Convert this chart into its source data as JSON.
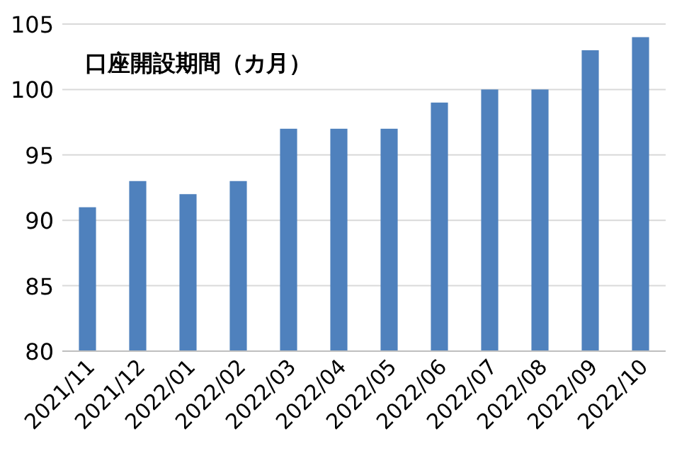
{
  "chart_data": {
    "type": "bar",
    "title": "口座開設期間（カ月）",
    "categories": [
      "2021/11",
      "2021/12",
      "2022/01",
      "2022/02",
      "2022/03",
      "2022/04",
      "2022/05",
      "2022/06",
      "2022/07",
      "2022/08",
      "2022/09",
      "2022/10"
    ],
    "series": [
      {
        "color": "#4f81bd",
        "values": [
          91,
          93,
          92,
          93,
          97,
          97,
          97,
          99,
          100,
          100,
          103,
          104
        ]
      }
    ],
    "ylim": [
      80,
      105
    ],
    "yticks": [
      80,
      85,
      90,
      95,
      100,
      105
    ],
    "grid": "y"
  }
}
